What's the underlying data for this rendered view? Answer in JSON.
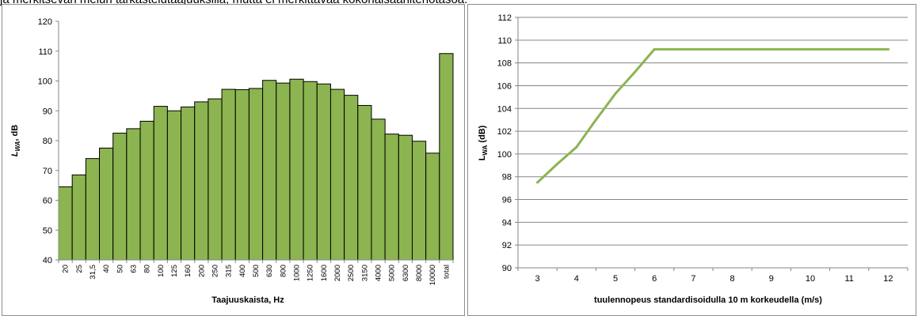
{
  "header_text": "ja merkitsevän melun tarkastelutaajuuksilla, mutta ei merkittävää kokonaisäänitehotasoa.",
  "chart_data": [
    {
      "type": "bar",
      "title": "",
      "xlabel": "Taajuuskaista, Hz",
      "ylabel_main": "L",
      "ylabel_sub": "WA",
      "ylabel_rest": ", dB",
      "ylim": [
        40,
        120
      ],
      "yticks": [
        40,
        50,
        60,
        70,
        80,
        90,
        100,
        110,
        120
      ],
      "grid": false,
      "legend": "none",
      "categories": [
        "20",
        "25",
        "31,5",
        "40",
        "50",
        "63",
        "80",
        "100",
        "125",
        "160",
        "200",
        "250",
        "315",
        "400",
        "500",
        "630",
        "800",
        "1000",
        "1250",
        "1600",
        "2000",
        "2500",
        "3150",
        "4000",
        "5000",
        "6300",
        "8000",
        "10000",
        "total"
      ],
      "values": [
        64.5,
        68.5,
        74,
        77.5,
        82.5,
        84,
        86.5,
        91.5,
        90,
        91.3,
        93,
        94,
        97.2,
        97.1,
        97.5,
        100.2,
        99.3,
        100.6,
        99.8,
        99,
        97.2,
        95.2,
        91.8,
        87.2,
        82.2,
        81.8,
        79.8,
        75.8,
        109.2
      ],
      "bar_color": "#8cb450",
      "bar_edge_color": "#000000"
    },
    {
      "type": "line",
      "title": "",
      "xlabel": "tuulennopeus standardisoidulla  10 m korkeudella (m/s)",
      "ylabel_main": "L",
      "ylabel_sub": "WA",
      "ylabel_rest": " (dB)",
      "xlim": [
        2.5,
        12.5
      ],
      "xticks": [
        3,
        4,
        5,
        6,
        7,
        8,
        9,
        10,
        11,
        12
      ],
      "ylim": [
        90,
        112
      ],
      "yticks": [
        90,
        92,
        94,
        96,
        98,
        100,
        102,
        104,
        106,
        108,
        110,
        112
      ],
      "grid": true,
      "legend": "none",
      "x": [
        3,
        3.5,
        4,
        4.5,
        5,
        5.5,
        6,
        12
      ],
      "y": [
        97.5,
        99.1,
        100.6,
        103,
        105.3,
        107.2,
        109.2,
        109.2
      ],
      "line_color": "#8cb450"
    }
  ]
}
